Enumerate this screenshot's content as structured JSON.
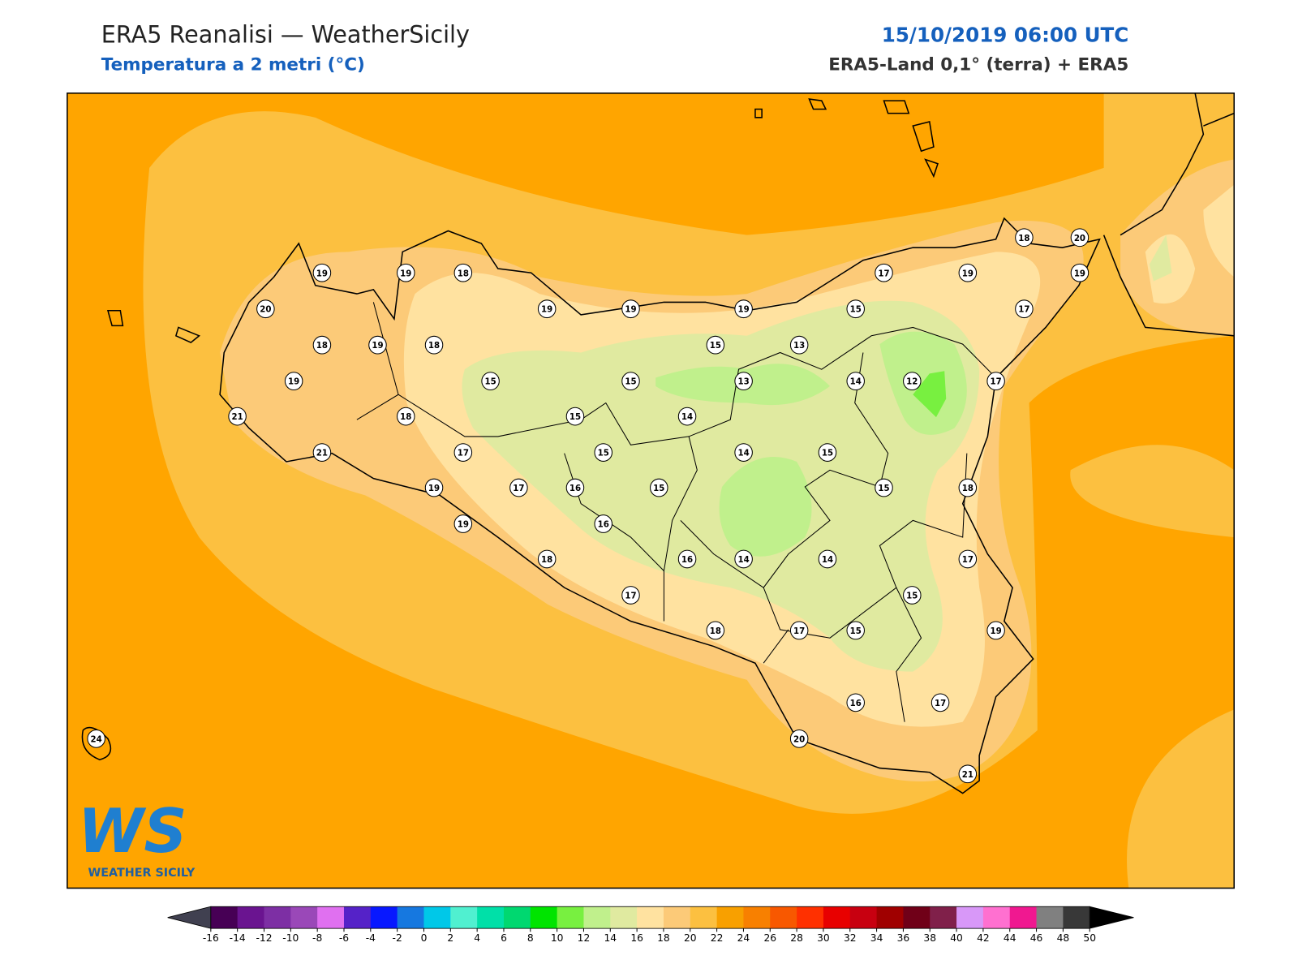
{
  "header": {
    "title": "ERA5 Reanalisi — WeatherSicily",
    "subtitle": "Temperatura a 2 metri (°C)",
    "datetime": "15/10/2019 06:00 UTC",
    "source": "ERA5-Land 0,1° (terra) + ERA5"
  },
  "logo": {
    "text": "WS",
    "caption": "WEATHER SICILY"
  },
  "stations": [
    19,
    19,
    18,
    20,
    18,
    19,
    18,
    19,
    21,
    18,
    21,
    17,
    19,
    17,
    16,
    19,
    18,
    17,
    19,
    19,
    15,
    15,
    15,
    15,
    15,
    16,
    14,
    15,
    19,
    13,
    13,
    15,
    14,
    12,
    17,
    19,
    18,
    20,
    19,
    17,
    17,
    14,
    15,
    15,
    18,
    16,
    14,
    14,
    17,
    15,
    18,
    17,
    15,
    19,
    16,
    17,
    20,
    21,
    24
  ],
  "colorbar": {
    "ticks": [
      -16,
      -14,
      -12,
      -10,
      -8,
      -6,
      -4,
      -2,
      0,
      2,
      4,
      6,
      8,
      10,
      12,
      14,
      16,
      18,
      20,
      22,
      24,
      26,
      28,
      30,
      32,
      34,
      36,
      38,
      40,
      42,
      44,
      46,
      48,
      50
    ],
    "colors": [
      "#470055",
      "#6a1490",
      "#7d2fa4",
      "#9a48b8",
      "#e070f0",
      "#5522c8",
      "#0818ff",
      "#1678e0",
      "#00c8e8",
      "#50f0d0",
      "#00e0a8",
      "#00d870",
      "#00e400",
      "#78f040",
      "#c0f08c",
      "#e0eaa0",
      "#ffe2a0",
      "#fcca78",
      "#fcc040",
      "#f8a000",
      "#f88000",
      "#f85800",
      "#ff3000",
      "#e80000",
      "#c80010",
      "#a00000",
      "#700018",
      "#80204a",
      "#d898f8",
      "#ff70d0",
      "#f01890",
      "#808080",
      "#383838"
    ],
    "under": "#404050",
    "over": "#000000"
  }
}
